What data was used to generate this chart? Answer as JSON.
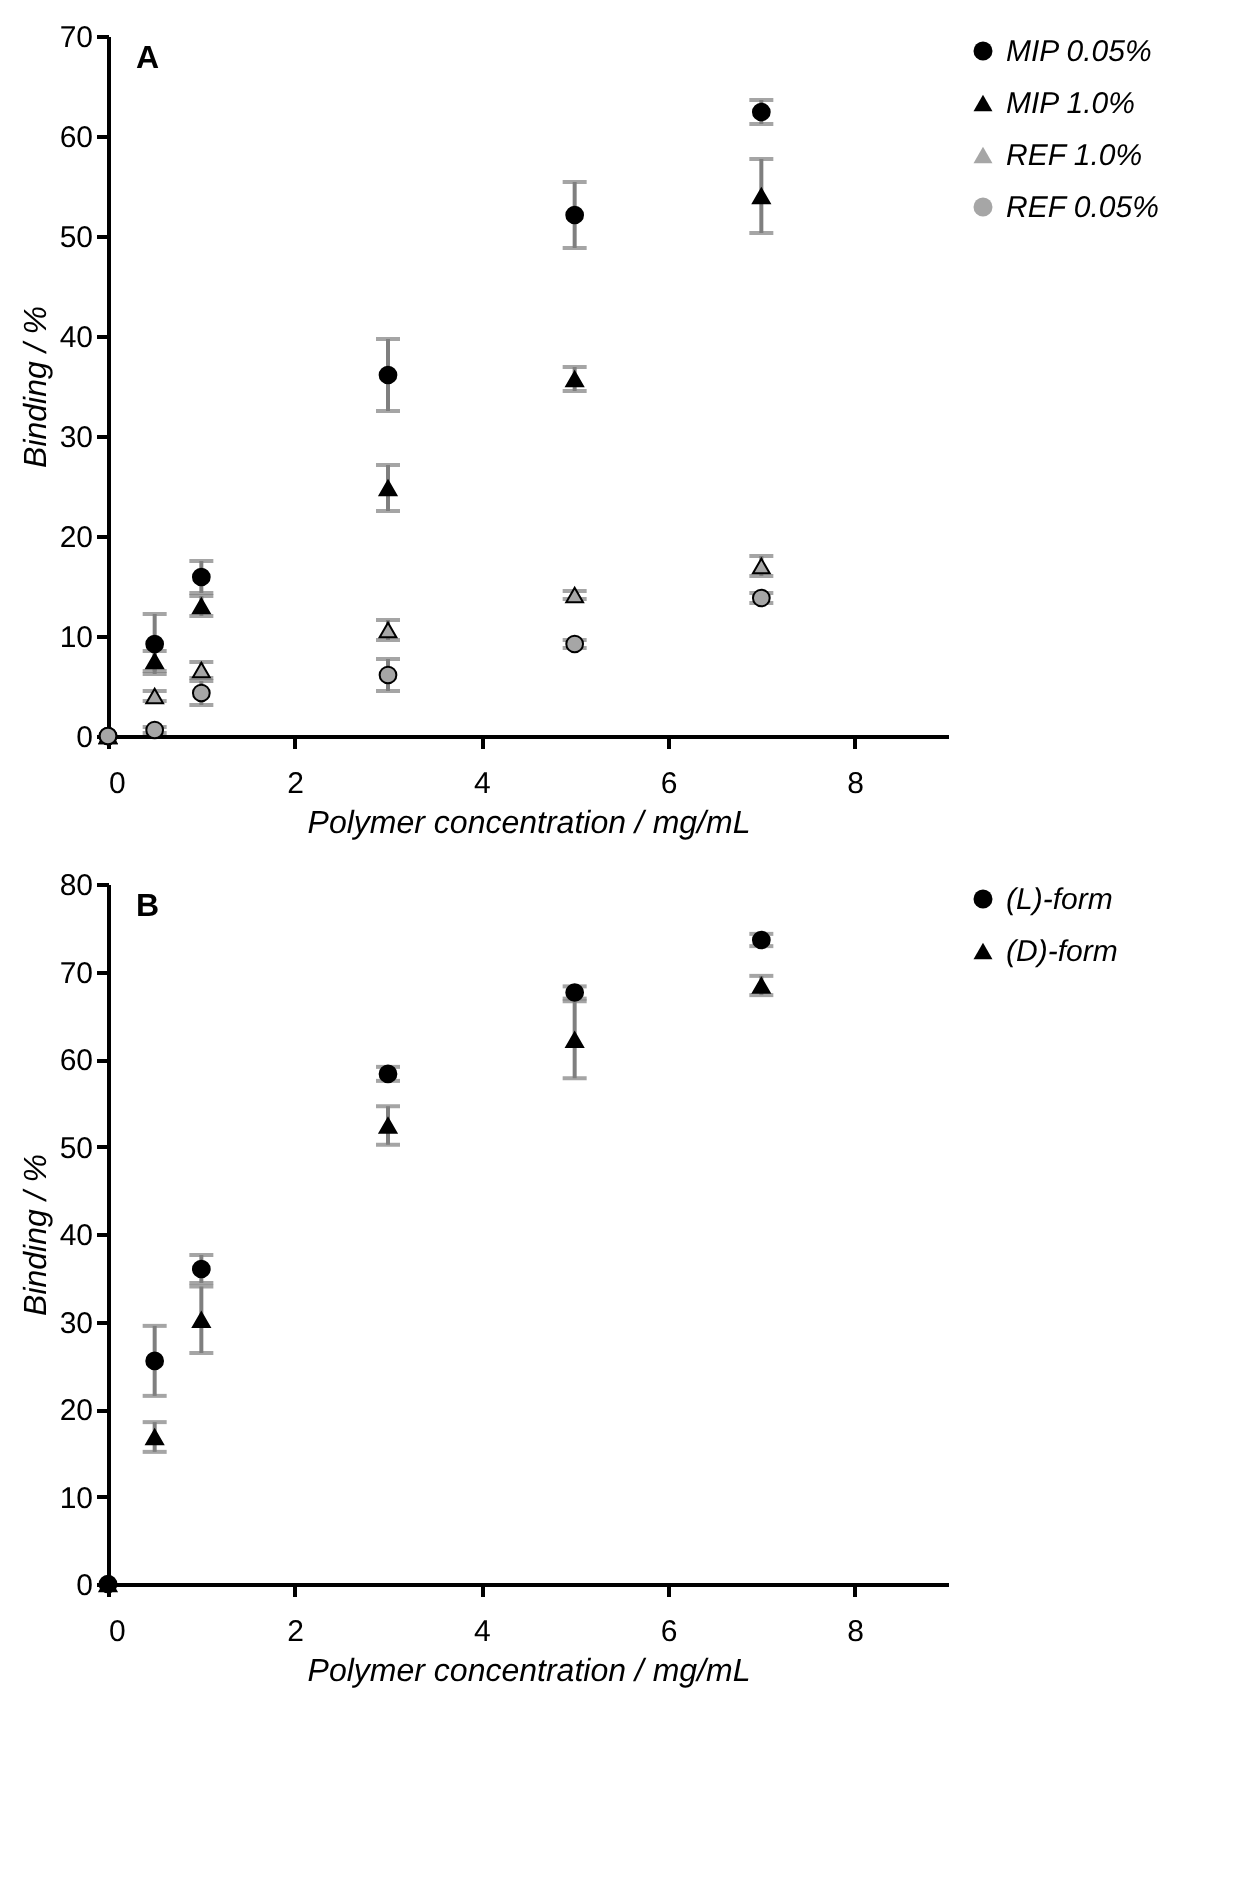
{
  "chart_data": [
    {
      "type": "scatter",
      "title": "A",
      "xlabel": "Polymer concentration / mg/mL",
      "ylabel": "Binding / %",
      "x": [
        0,
        0.5,
        1,
        3,
        5,
        7
      ],
      "xlim": [
        0,
        9
      ],
      "xticks": [
        0,
        2,
        4,
        6,
        8
      ],
      "ylim": [
        0,
        70
      ],
      "yticks": [
        0,
        10,
        20,
        30,
        40,
        50,
        60,
        70
      ],
      "legend": "right",
      "series": [
        {
          "name": "MIP 0.05%",
          "color": "#000000",
          "marker": "circle",
          "values": [
            0,
            9.2,
            15.9,
            36.1,
            52.1,
            62.4
          ],
          "errors": [
            null,
            3,
            1.6,
            3.6,
            3.3,
            1.2
          ]
        },
        {
          "name": "MIP 1.0%",
          "color": "#000000",
          "marker": "triangle",
          "values": [
            0,
            7.5,
            13.0,
            24.8,
            35.7,
            54.0
          ],
          "errors": [
            null,
            1,
            1,
            2.3,
            1.2,
            3.7
          ]
        },
        {
          "name": "REF 1.0%",
          "color": "#a6a6a6",
          "marker": "triangle",
          "values": [
            0,
            4.0,
            6.6,
            10.6,
            14.1,
            17.0
          ],
          "errors": [
            null,
            0.5,
            0.8,
            1,
            0.4,
            1
          ]
        },
        {
          "name": "REF 0.05%",
          "color": "#a6a6a6",
          "marker": "circle",
          "values": [
            0,
            0.6,
            4.3,
            6.1,
            9.2,
            13.8
          ],
          "errors": [
            null,
            0.3,
            1.2,
            1.6,
            0.4,
            0.5
          ]
        }
      ]
    },
    {
      "type": "scatter",
      "title": "B",
      "xlabel": "Polymer concentration / mg/mL",
      "ylabel": "Binding / %",
      "x": [
        0,
        0.5,
        1,
        3,
        5,
        7
      ],
      "xlim": [
        0,
        9
      ],
      "xticks": [
        0,
        2,
        4,
        6,
        8
      ],
      "ylim": [
        0,
        80
      ],
      "yticks": [
        0,
        10,
        20,
        30,
        40,
        50,
        60,
        70,
        80
      ],
      "legend": "top right",
      "series": [
        {
          "name": "(L)-form",
          "color": "#000000",
          "marker": "circle",
          "values": [
            0,
            25.5,
            36.0,
            58.3,
            67.6,
            73.6
          ],
          "errors": [
            null,
            4,
            1.6,
            0.8,
            0.7,
            0.7
          ]
        },
        {
          "name": "(D)-form",
          "color": "#000000",
          "marker": "triangle",
          "values": [
            0,
            16.8,
            30.2,
            52.4,
            62.2,
            68.4
          ],
          "errors": [
            null,
            1.7,
            3.8,
            2.2,
            4.4,
            1.1
          ]
        }
      ]
    }
  ]
}
